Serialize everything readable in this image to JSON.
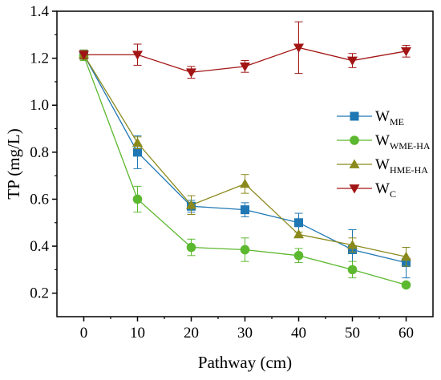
{
  "chart_data": {
    "type": "line",
    "xlabel": "Pathway (cm)",
    "ylabel": "TP (mg/L)",
    "xlim": [
      -5,
      65
    ],
    "ylim": [
      0.1,
      1.4
    ],
    "x": [
      0,
      10,
      20,
      30,
      40,
      50,
      60
    ],
    "x_ticks": [
      0,
      10,
      20,
      30,
      40,
      50,
      60
    ],
    "x_tick_labels": [
      "0",
      "10",
      "20",
      "30",
      "40",
      "50",
      "60"
    ],
    "y_ticks": [
      0.2,
      0.4,
      0.6,
      0.8,
      1.0,
      1.2,
      1.4
    ],
    "y_tick_labels": [
      "0.2",
      "0.4",
      "0.6",
      "0.8",
      "1.0",
      "1.2",
      "1.4"
    ],
    "legend_position": "right",
    "series": [
      {
        "id": "wme",
        "name": "WME",
        "legend_main": "W",
        "legend_sub": "ME",
        "color": "#1f77b4",
        "marker": "square",
        "values": [
          1.215,
          0.8,
          0.57,
          0.555,
          0.5,
          0.385,
          0.33
        ],
        "errors": [
          0.02,
          0.07,
          0.025,
          0.03,
          0.04,
          0.085,
          0.065
        ]
      },
      {
        "id": "wwmeha",
        "name": "WWME-HA",
        "legend_main": "W",
        "legend_sub": "WME-HA",
        "color": "#5cb82e",
        "marker": "circle",
        "values": [
          1.21,
          0.6,
          0.395,
          0.385,
          0.36,
          0.3,
          0.235
        ],
        "errors": [
          0.02,
          0.055,
          0.035,
          0.05,
          0.03,
          0.035,
          0.01
        ]
      },
      {
        "id": "whmeha",
        "name": "WHME-HA",
        "legend_main": "W",
        "legend_sub": "HME-HA",
        "color": "#8a8a1c",
        "marker": "triangle-up",
        "values": [
          1.215,
          0.84,
          0.575,
          0.665,
          0.45,
          0.405,
          0.355
        ],
        "errors": [
          0.02,
          0.025,
          0.04,
          0.04,
          0.01,
          0.03,
          0.04
        ]
      },
      {
        "id": "wc",
        "name": "WC",
        "legend_main": "W",
        "legend_sub": "C",
        "color": "#a31515",
        "marker": "triangle-down",
        "values": [
          1.215,
          1.215,
          1.14,
          1.165,
          1.245,
          1.19,
          1.23
        ],
        "errors": [
          0.015,
          0.045,
          0.025,
          0.025,
          0.11,
          0.03,
          0.025
        ]
      }
    ]
  }
}
